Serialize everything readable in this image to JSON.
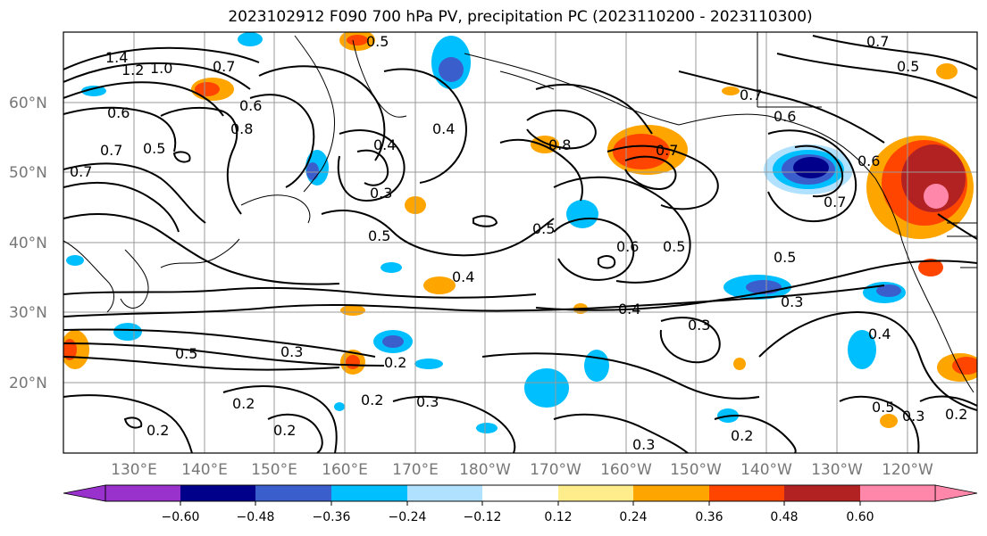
{
  "title": "2023102912 F090 700 hPa PV, precipitation PC (2023110200 - 2023110300)",
  "lat_labels": [
    "60°N",
    "50°N",
    "40°N",
    "30°N",
    "20°N"
  ],
  "lon_labels": [
    "130°E",
    "140°E",
    "150°E",
    "160°E",
    "170°E",
    "180°W",
    "170°W",
    "160°W",
    "150°W",
    "140°W",
    "130°W",
    "120°W"
  ],
  "colorbar": {
    "colors": [
      "#9932cc",
      "#00008b",
      "#3a5fcd",
      "#00bfff",
      "#b0e2ff",
      "#ffffff",
      "#ffec8b",
      "#ffa500",
      "#ff4500",
      "#b22222",
      "#ff88aa"
    ],
    "tick_labels": [
      "−0.60",
      "−0.48",
      "−0.36",
      "−0.24",
      "−0.12",
      "0.12",
      "0.24",
      "0.36",
      "0.48",
      "0.60"
    ]
  },
  "contour_labels": [
    "1.4",
    "1.2",
    "1.0",
    "0.7",
    "0.6",
    "0.8",
    "0.7",
    "0.5",
    "0.6",
    "0.7",
    "0.5",
    "0.4",
    "0.3",
    "0.5",
    "0.4",
    "0.5",
    "0.8",
    "0.7",
    "0.6",
    "0.5",
    "0.5",
    "0.7",
    "0.6",
    "0.7",
    "0.7",
    "0.5",
    "0.6",
    "0.4",
    "0.4",
    "0.3",
    "0.3",
    "0.4",
    "0.5",
    "0.3",
    "0.2",
    "0.2",
    "0.3",
    "0.2",
    "0.2",
    "0.2",
    "0.3",
    "0.2",
    "0.5",
    "0.3",
    "0.2"
  ]
}
